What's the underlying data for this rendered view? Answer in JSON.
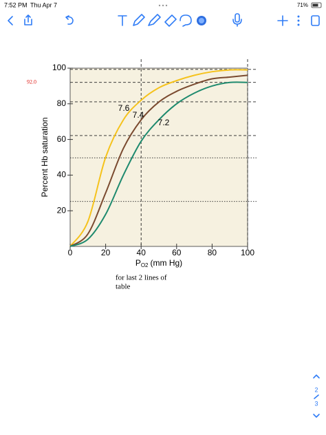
{
  "status_bar": {
    "time": "7:52 PM",
    "date": "Thu Apr 7",
    "battery": "71%"
  },
  "chart": {
    "type": "line",
    "y_label": "Percent Hb saturation",
    "x_label": {
      "main": "P",
      "sub": "O2",
      "rest": "(mm Hg)"
    },
    "xlim": [
      0,
      100
    ],
    "ylim": [
      0,
      100
    ],
    "xticks": [
      0,
      20,
      40,
      60,
      80,
      100
    ],
    "yticks": [
      20,
      40,
      60,
      80,
      100
    ],
    "background": "#f6f1e0",
    "x": [
      0,
      10,
      20,
      30,
      40,
      50,
      60,
      70,
      80,
      90,
      100
    ],
    "series": [
      {
        "name": "7.6",
        "color": "#f5c21b",
        "values": [
          0,
          14,
          50,
          71,
          82,
          89,
          93,
          96,
          98,
          99,
          99
        ]
      },
      {
        "name": "7.4",
        "color": "#7a4a2f",
        "values": [
          0,
          7,
          30,
          55,
          71,
          81,
          87,
          91,
          94,
          95,
          96
        ]
      },
      {
        "name": "7.2",
        "color": "#1e8a6e",
        "values": [
          0,
          4,
          18,
          40,
          59,
          71,
          80,
          86,
          90,
          92,
          92
        ]
      }
    ],
    "reference_lines": [
      {
        "value": 99.3,
        "style": "dashed"
      },
      {
        "value": 92,
        "label": "92.0",
        "style": "dashed"
      },
      {
        "value": 81.1,
        "style": "dashed"
      },
      {
        "value": 62.2,
        "style": "dashed"
      },
      {
        "value": 49.7,
        "style": "dotted"
      },
      {
        "value": 25.2,
        "style": "dotted"
      }
    ],
    "vertical_lines": [
      40,
      100
    ],
    "annotation_color": "#e0201b"
  },
  "note": [
    "for last 2 lines of",
    "table"
  ],
  "page_nav": {
    "current": "2",
    "total": "3"
  }
}
